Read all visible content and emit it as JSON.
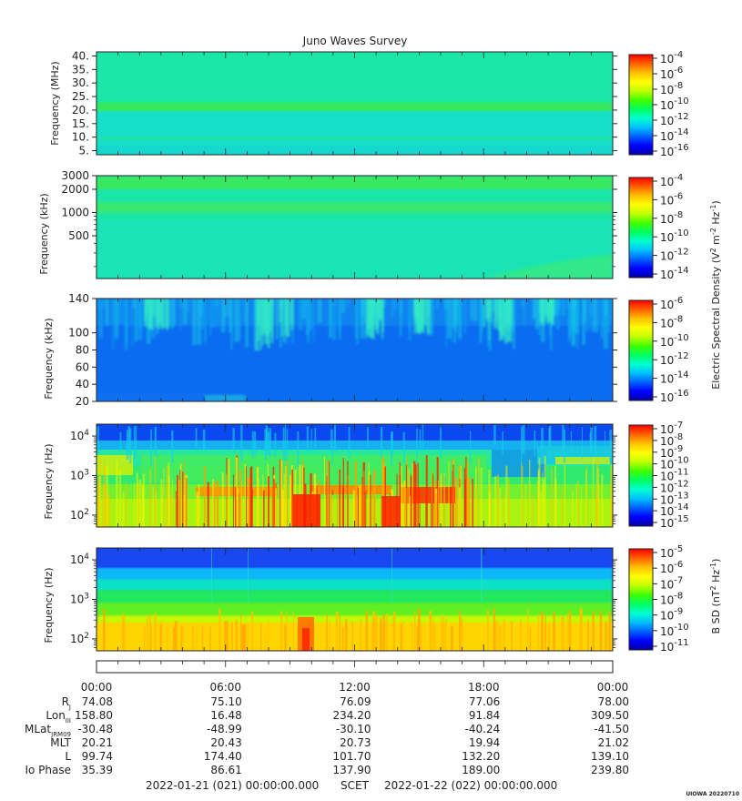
{
  "title": "Juno Waves Survey",
  "footer_tag": "UIOWA 20220710",
  "colors": {
    "cmap": [
      "#0000a8",
      "#0000ff",
      "#0060ff",
      "#00c0ff",
      "#00ffd0",
      "#00ff60",
      "#40ff00",
      "#c0ff00",
      "#ffff00",
      "#ffc000",
      "#ff6000",
      "#ff0000"
    ]
  },
  "panels": [
    {
      "ylabel": "Frequency (MHz)",
      "yscale": "linear",
      "ylim": [
        3.5,
        41.5
      ],
      "yticks": [
        {
          "v": 40,
          "label": "40."
        },
        {
          "v": 35,
          "label": "35."
        },
        {
          "v": 30,
          "label": "30."
        },
        {
          "v": 25,
          "label": "25."
        },
        {
          "v": 20,
          "label": "20."
        },
        {
          "v": 15,
          "label": "15."
        },
        {
          "v": 10,
          "label": "10."
        },
        {
          "v": 5,
          "label": "5."
        }
      ],
      "colorbar": {
        "ticks": [
          {
            "base": "10",
            "exp": "-4"
          },
          {
            "base": "10",
            "exp": "-6"
          },
          {
            "base": "10",
            "exp": "-8"
          },
          {
            "base": "10",
            "exp": "-10"
          },
          {
            "base": "10",
            "exp": "-12"
          },
          {
            "base": "10",
            "exp": "-14"
          },
          {
            "base": "10",
            "exp": "-16"
          }
        ]
      }
    },
    {
      "ylabel": "Frequency (kHz)",
      "yscale": "log",
      "ylim": [
        140,
        3000
      ],
      "yticks": [
        {
          "v": 3000,
          "label": "3000"
        },
        {
          "v": 2000,
          "label": "2000"
        },
        {
          "v": 1000,
          "label": "1000"
        },
        {
          "v": 500,
          "label": "500"
        }
      ],
      "colorbar": {
        "ticks": [
          {
            "base": "10",
            "exp": "-4"
          },
          {
            "base": "10",
            "exp": "-6"
          },
          {
            "base": "10",
            "exp": "-8"
          },
          {
            "base": "10",
            "exp": "-10"
          },
          {
            "base": "10",
            "exp": "-12"
          },
          {
            "base": "10",
            "exp": "-14"
          }
        ]
      }
    },
    {
      "ylabel": "Frequency (kHz)",
      "yscale": "linear",
      "ylim": [
        20,
        140
      ],
      "yticks": [
        {
          "v": 140,
          "label": "140"
        },
        {
          "v": 100,
          "label": "100"
        },
        {
          "v": 80,
          "label": "80"
        },
        {
          "v": 60,
          "label": "60"
        },
        {
          "v": 40,
          "label": "40"
        },
        {
          "v": 20,
          "label": "20"
        }
      ],
      "colorbar": {
        "ticks": [
          {
            "base": "10",
            "exp": "-6"
          },
          {
            "base": "10",
            "exp": "-8"
          },
          {
            "base": "10",
            "exp": "-10"
          },
          {
            "base": "10",
            "exp": "-12"
          },
          {
            "base": "10",
            "exp": "-14"
          },
          {
            "base": "10",
            "exp": "-16"
          }
        ]
      }
    },
    {
      "ylabel": "Frequency (Hz)",
      "yscale": "log",
      "ylim": [
        50,
        20000
      ],
      "yticks": [
        {
          "v": 10000,
          "base": "10",
          "exp": "4"
        },
        {
          "v": 1000,
          "base": "10",
          "exp": "3"
        },
        {
          "v": 100,
          "base": "10",
          "exp": "2"
        }
      ],
      "colorbar": {
        "ticks": [
          {
            "base": "10",
            "exp": "-7"
          },
          {
            "base": "10",
            "exp": "-8"
          },
          {
            "base": "10",
            "exp": "-9"
          },
          {
            "base": "10",
            "exp": "-10"
          },
          {
            "base": "10",
            "exp": "-11"
          },
          {
            "base": "10",
            "exp": "-12"
          },
          {
            "base": "10",
            "exp": "-13"
          },
          {
            "base": "10",
            "exp": "-14"
          },
          {
            "base": "10",
            "exp": "-15"
          }
        ]
      }
    },
    {
      "ylabel": "Frequency (Hz)",
      "yscale": "log",
      "ylim": [
        50,
        20000
      ],
      "yticks": [
        {
          "v": 10000,
          "base": "10",
          "exp": "4"
        },
        {
          "v": 1000,
          "base": "10",
          "exp": "3"
        },
        {
          "v": 100,
          "base": "10",
          "exp": "2"
        }
      ],
      "colorbar": {
        "ticks": [
          {
            "base": "10",
            "exp": "-5"
          },
          {
            "base": "10",
            "exp": "-6"
          },
          {
            "base": "10",
            "exp": "-7"
          },
          {
            "base": "10",
            "exp": "-8"
          },
          {
            "base": "10",
            "exp": "-9"
          },
          {
            "base": "10",
            "exp": "-10"
          },
          {
            "base": "10",
            "exp": "-11"
          }
        ]
      }
    }
  ],
  "colorbar_labels": {
    "e": {
      "pre": "Electric Spectral Density (V",
      "sup1": "2",
      "mid1": " m",
      "sup2": "-2",
      "mid2": " Hz",
      "sup3": "-1",
      "post": ")"
    },
    "b": {
      "pre": "B SD (nT",
      "sup1": "2",
      "mid1": " Hz",
      "sup2": "-1",
      "post": ")"
    }
  },
  "chart_data": {
    "type": "heatmap",
    "title": "Juno Waves Survey",
    "x_time_ticks": [
      "00:00",
      "06:00",
      "12:00",
      "18:00",
      "00:00"
    ],
    "ephemeris": [
      {
        "name": "R",
        "sub": "J",
        "values": [
          "74.08",
          "75.10",
          "76.09",
          "77.06",
          "78.00"
        ]
      },
      {
        "name": "Lon",
        "sub": "III",
        "values": [
          "158.80",
          "16.48",
          "234.20",
          "91.84",
          "309.50"
        ]
      },
      {
        "name": "MLat",
        "sub": "JRM09",
        "values": [
          "-30.48",
          "-48.99",
          "-30.10",
          "-40.24",
          "-41.50"
        ]
      },
      {
        "name": "MLT",
        "sub": "",
        "values": [
          "20.21",
          "20.43",
          "20.73",
          "19.94",
          "21.02"
        ]
      },
      {
        "name": "L",
        "sub": "",
        "values": [
          "99.74",
          "174.40",
          "101.70",
          "132.20",
          "139.10"
        ]
      },
      {
        "name": "Io Phase",
        "sub": "",
        "values": [
          "35.39",
          "86.61",
          "137.90",
          "189.00",
          "239.80"
        ]
      }
    ],
    "time_range": {
      "start": "2022-01-21 (021) 00:00:00.000",
      "label": "SCET",
      "end": "2022-01-22 (022) 00:00:00.000"
    },
    "colorbar_ranges": [
      {
        "panel": 1,
        "min_exp": -16,
        "max_exp": -4
      },
      {
        "panel": 2,
        "min_exp": -14,
        "max_exp": -4
      },
      {
        "panel": 3,
        "min_exp": -16,
        "max_exp": -6
      },
      {
        "panel": 4,
        "min_exp": -15,
        "max_exp": -7
      },
      {
        "panel": 5,
        "min_exp": -11,
        "max_exp": -5
      }
    ]
  }
}
